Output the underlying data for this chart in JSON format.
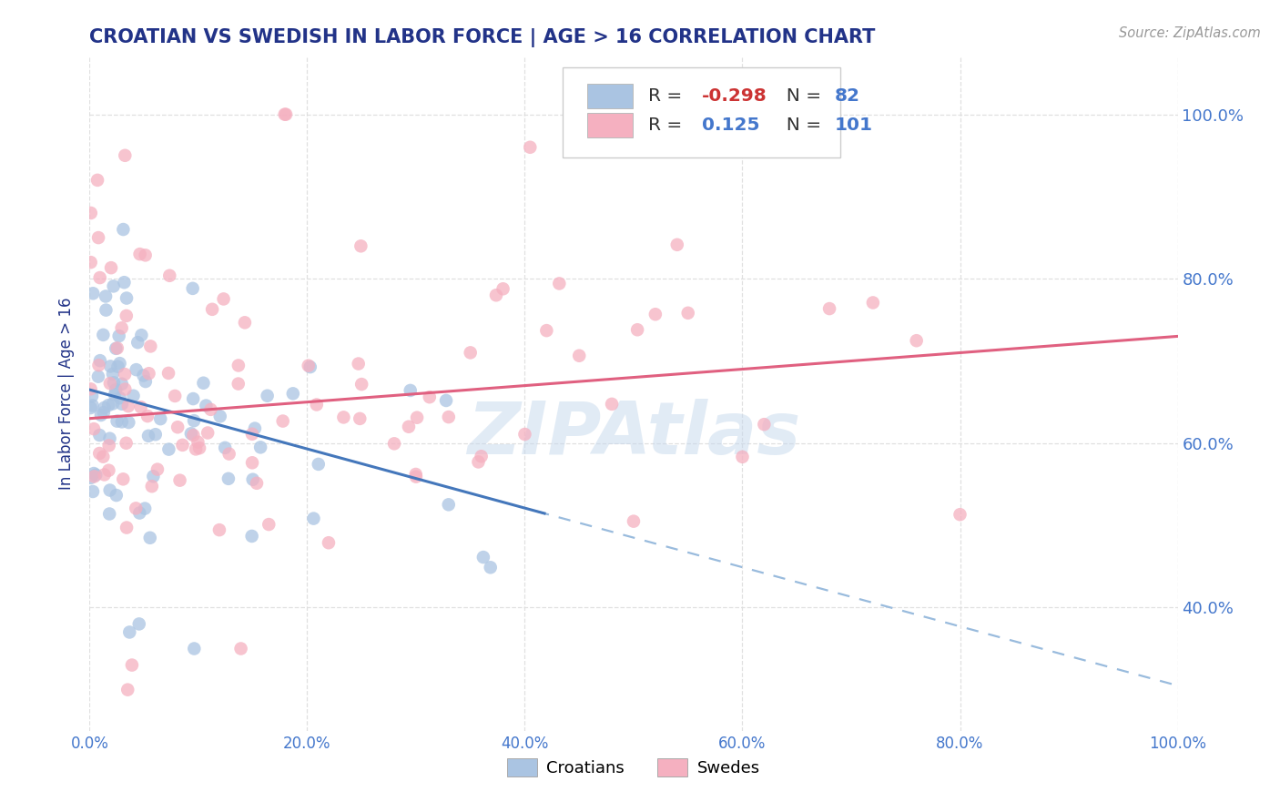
{
  "title": "CROATIAN VS SWEDISH IN LABOR FORCE | AGE > 16 CORRELATION CHART",
  "source_text": "Source: ZipAtlas.com",
  "ylabel": "In Labor Force | Age > 16",
  "watermark": "ZIPAtlas",
  "croatian_color": "#aac4e2",
  "swedish_color": "#f5b0c0",
  "croatian_trend_color": "#4477bb",
  "swedish_trend_color": "#e06080",
  "dashed_color": "#99bbdd",
  "background_color": "#ffffff",
  "grid_color": "#dddddd",
  "title_color": "#223388",
  "axis_label_color": "#223388",
  "tick_label_color": "#4477cc",
  "right_tick_color": "#4477cc",
  "xlim": [
    0.0,
    1.0
  ],
  "ylim": [
    0.25,
    1.07
  ],
  "xtick_labels": [
    "0.0%",
    "20.0%",
    "40.0%",
    "60.0%",
    "80.0%",
    "100.0%"
  ],
  "yticks_right": [
    0.4,
    0.6,
    0.8,
    1.0
  ],
  "ytick_right_labels": [
    "40.0%",
    "60.0%",
    "80.0%",
    "100.0%"
  ],
  "croatian_R": -0.298,
  "croatian_N": 82,
  "swedish_R": 0.125,
  "swedish_N": 101,
  "legend_R_color": "#4477cc",
  "legend_R_neg_color": "#cc3333",
  "legend_text_color": "#333333",
  "legend_N_color": "#4477cc"
}
